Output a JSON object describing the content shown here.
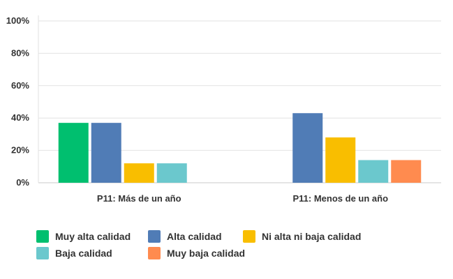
{
  "chart_data": {
    "type": "bar",
    "categories": [
      "P11: Más de un año",
      "P11: Menos de un año"
    ],
    "series": [
      {
        "name": "Muy alta calidad",
        "color": "#00bf6f",
        "values": [
          37,
          0
        ]
      },
      {
        "name": "Alta calidad",
        "color": "#507cb6",
        "values": [
          37,
          43
        ]
      },
      {
        "name": "Ni alta ni baja calidad",
        "color": "#f9be00",
        "values": [
          12,
          28
        ]
      },
      {
        "name": "Baja calidad",
        "color": "#6bc8cd",
        "values": [
          12,
          14
        ]
      },
      {
        "name": "Muy baja calidad",
        "color": "#ff8b4f",
        "values": [
          0,
          14
        ]
      }
    ],
    "yticks": [
      "0%",
      "20%",
      "40%",
      "60%",
      "80%",
      "100%"
    ],
    "ylim": [
      0,
      100
    ],
    "grid": true,
    "legend_position": "bottom"
  }
}
